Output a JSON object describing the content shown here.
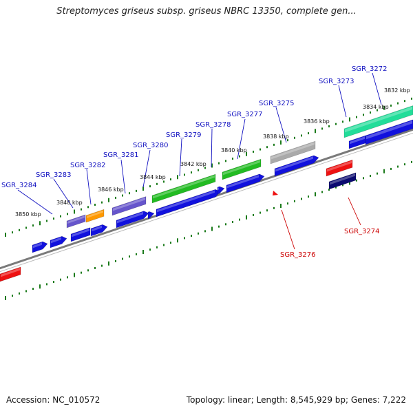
{
  "title": "Streptomyces griseus subsp. griseus NBRC 13350, complete gen...",
  "footer": {
    "accession": "Accession: NC_010572",
    "topology": "Topology: linear; Length: 8,545,929 bp; Genes: 7,222"
  },
  "colors": {
    "plus_label": "#1010c0",
    "minus_label": "#cc0000",
    "scale_tick": "#1a7a1a",
    "backbone": "#7a7a7a",
    "gene_blue": "#1111dd",
    "gene_red": "#ee1111",
    "gene_navy": "#0a0a70",
    "gene_lavender": "#6655cc",
    "gene_orange": "#ff9900",
    "gene_green": "#22bb22",
    "gene_teal": "#22dd99",
    "gene_gray": "#aaaaaa"
  },
  "kbp_labels": [
    "3832 kbp",
    "3834 kbp",
    "3836 kbp",
    "3838 kbp",
    "3840 kbp",
    "3842 kbp",
    "3844 kbp",
    "3846 kbp",
    "3848 kbp",
    "3850 kbp"
  ],
  "genes_plus": [
    "SGR_3272",
    "SGR_3273",
    "SGR_3275",
    "SGR_3277",
    "SGR_3278",
    "SGR_3279",
    "SGR_3280",
    "SGR_3281",
    "SGR_3282",
    "SGR_3283",
    "SGR_3284"
  ],
  "genes_minus": [
    "SGR_3274",
    "SGR_3276"
  ]
}
